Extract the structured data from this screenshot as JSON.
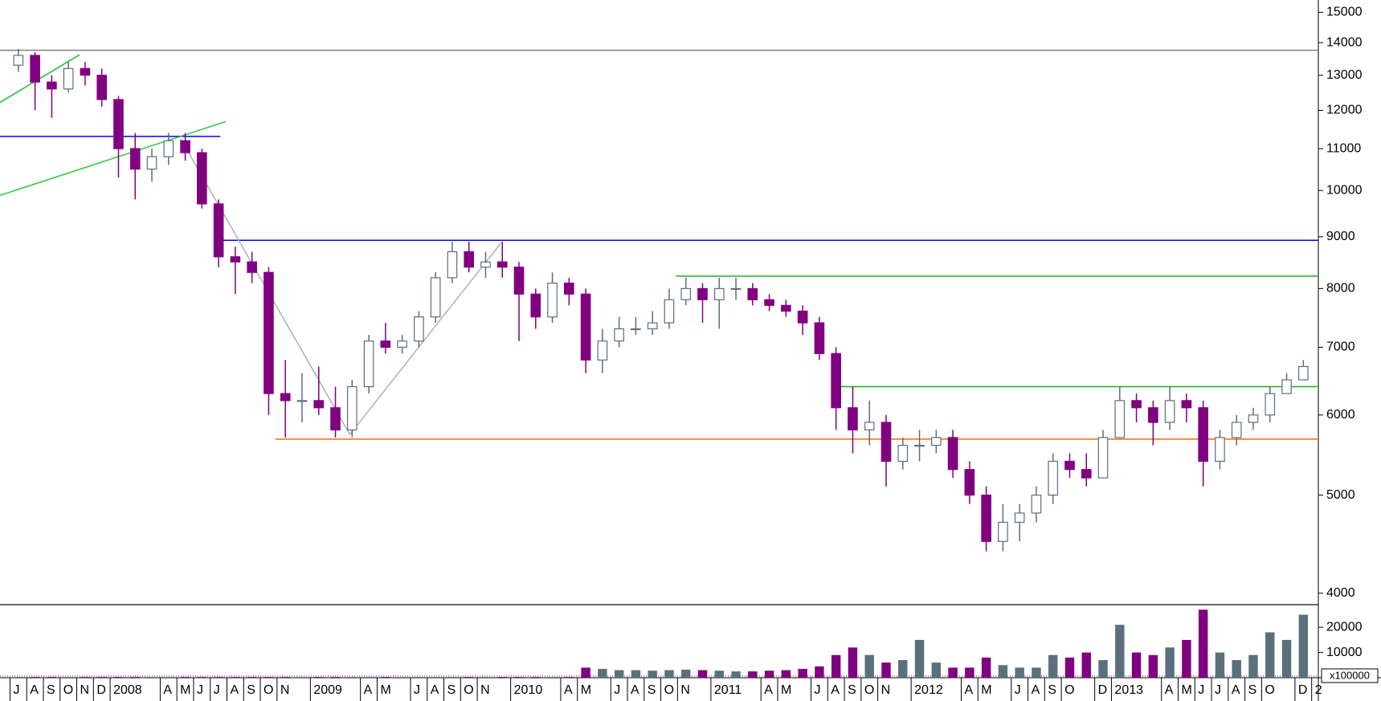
{
  "chart_data": {
    "type": "candlestick",
    "log_scale": true,
    "up_color": "#ffffff",
    "up_edge_color": "#5b6f7d",
    "down_color": "#800080",
    "ylim": [
      3897,
      15427
    ],
    "yticks": [
      4000,
      5000,
      6000,
      7000,
      8000,
      9000,
      10000,
      11000,
      12000,
      13000,
      14000,
      15000
    ],
    "xlim": [
      "2007-06-13",
      "2014-01-13"
    ],
    "xticks": [
      {
        "value": "2007-07",
        "label": "J"
      },
      {
        "value": "2007-08",
        "label": "A"
      },
      {
        "value": "2007-09",
        "label": "S"
      },
      {
        "value": "2007-10",
        "label": "O"
      },
      {
        "value": "2007-11",
        "label": "N"
      },
      {
        "value": "2007-12",
        "label": "D"
      },
      {
        "value": "2008-01",
        "label": "2008"
      },
      {
        "value": "2008-04",
        "label": "A"
      },
      {
        "value": "2008-05",
        "label": "M"
      },
      {
        "value": "2008-06",
        "label": "J"
      },
      {
        "value": "2008-07",
        "label": "J"
      },
      {
        "value": "2008-08",
        "label": "A"
      },
      {
        "value": "2008-09",
        "label": "S"
      },
      {
        "value": "2008-10",
        "label": "O"
      },
      {
        "value": "2008-11",
        "label": "N"
      },
      {
        "value": "2009-01",
        "label": "2009"
      },
      {
        "value": "2009-04",
        "label": "A"
      },
      {
        "value": "2009-05",
        "label": "M"
      },
      {
        "value": "2009-07",
        "label": "J"
      },
      {
        "value": "2009-08",
        "label": "A"
      },
      {
        "value": "2009-09",
        "label": "S"
      },
      {
        "value": "2009-10",
        "label": "O"
      },
      {
        "value": "2009-11",
        "label": "N"
      },
      {
        "value": "2010-01",
        "label": "2010"
      },
      {
        "value": "2010-04",
        "label": "A"
      },
      {
        "value": "2010-05",
        "label": "M"
      },
      {
        "value": "2010-07",
        "label": "J"
      },
      {
        "value": "2010-08",
        "label": "A"
      },
      {
        "value": "2010-09",
        "label": "S"
      },
      {
        "value": "2010-10",
        "label": "O"
      },
      {
        "value": "2010-11",
        "label": "N"
      },
      {
        "value": "2011-01",
        "label": "2011"
      },
      {
        "value": "2011-04",
        "label": "A"
      },
      {
        "value": "2011-05",
        "label": "M"
      },
      {
        "value": "2011-07",
        "label": "J"
      },
      {
        "value": "2011-08",
        "label": "A"
      },
      {
        "value": "2011-09",
        "label": "S"
      },
      {
        "value": "2011-10",
        "label": "O"
      },
      {
        "value": "2011-11",
        "label": "N"
      },
      {
        "value": "2012-01",
        "label": "2012"
      },
      {
        "value": "2012-04",
        "label": "A"
      },
      {
        "value": "2012-05",
        "label": "M"
      },
      {
        "value": "2012-07",
        "label": "J"
      },
      {
        "value": "2012-08",
        "label": "A"
      },
      {
        "value": "2012-09",
        "label": "S"
      },
      {
        "value": "2012-10",
        "label": "O"
      },
      {
        "value": "2012-12",
        "label": "D"
      },
      {
        "value": "2013-01",
        "label": "2013"
      },
      {
        "value": "2013-04",
        "label": "A"
      },
      {
        "value": "2013-05",
        "label": "M"
      },
      {
        "value": "2013-06",
        "label": "J"
      },
      {
        "value": "2013-07",
        "label": "J"
      },
      {
        "value": "2013-08",
        "label": "A"
      },
      {
        "value": "2013-09",
        "label": "S"
      },
      {
        "value": "2013-10",
        "label": "O"
      },
      {
        "value": "2013-12",
        "label": "D"
      },
      {
        "value": "2014-01",
        "label": "2"
      }
    ],
    "x": [
      "2007-07",
      "2007-08",
      "2007-09",
      "2007-10",
      "2007-11",
      "2007-12",
      "2008-01",
      "2008-02",
      "2008-03",
      "2008-04",
      "2008-05",
      "2008-06",
      "2008-07",
      "2008-08",
      "2008-09",
      "2008-10",
      "2008-11",
      "2008-12",
      "2009-01",
      "2009-02",
      "2009-03",
      "2009-04",
      "2009-05",
      "2009-06",
      "2009-07",
      "2009-08",
      "2009-09",
      "2009-10",
      "2009-11",
      "2009-12",
      "2010-01",
      "2010-02",
      "2010-03",
      "2010-04",
      "2010-05",
      "2010-06",
      "2010-07",
      "2010-08",
      "2010-09",
      "2010-10",
      "2010-11",
      "2010-12",
      "2011-01",
      "2011-02",
      "2011-03",
      "2011-04",
      "2011-05",
      "2011-06",
      "2011-07",
      "2011-08",
      "2011-09",
      "2011-10",
      "2011-11",
      "2011-12",
      "2012-01",
      "2012-02",
      "2012-03",
      "2012-04",
      "2012-05",
      "2012-06",
      "2012-07",
      "2012-08",
      "2012-09",
      "2012-10",
      "2012-11",
      "2012-12",
      "2013-01",
      "2013-02",
      "2013-03",
      "2013-04",
      "2013-05",
      "2013-06",
      "2013-07",
      "2013-08",
      "2013-09",
      "2013-10",
      "2013-11",
      "2013-12"
    ],
    "open": [
      13300,
      13600,
      12800,
      12600,
      13200,
      13000,
      12300,
      11000,
      10500,
      10800,
      11200,
      10900,
      9700,
      8600,
      8500,
      8300,
      6300,
      6200,
      6200,
      6100,
      5800,
      6400,
      7100,
      7000,
      7100,
      7500,
      8200,
      8700,
      8400,
      8500,
      8400,
      7900,
      7500,
      8100,
      7900,
      6800,
      7100,
      7300,
      7300,
      7400,
      7800,
      8000,
      7800,
      8000,
      8000,
      7800,
      7700,
      7600,
      7400,
      6900,
      6100,
      5800,
      5900,
      5400,
      5600,
      5600,
      5700,
      5300,
      5000,
      4500,
      4700,
      4800,
      5000,
      5400,
      5300,
      5200,
      5700,
      6200,
      6100,
      5900,
      6200,
      6100,
      5400,
      5700,
      5900,
      6000,
      6300,
      6500
    ],
    "high": [
      13800,
      13700,
      13000,
      13400,
      13400,
      13200,
      12400,
      11400,
      11000,
      11400,
      11400,
      11000,
      9800,
      8800,
      8700,
      8400,
      6800,
      6600,
      6700,
      6400,
      6500,
      7200,
      7400,
      7200,
      7600,
      8300,
      8900,
      8900,
      8700,
      8900,
      8500,
      8000,
      8300,
      8200,
      8000,
      7300,
      7500,
      7500,
      7600,
      8000,
      8200,
      8100,
      8200,
      8200,
      8100,
      7900,
      7800,
      7700,
      7500,
      7000,
      6400,
      6200,
      6000,
      5700,
      5800,
      5800,
      5800,
      5400,
      5100,
      4900,
      4900,
      5100,
      5500,
      5500,
      5500,
      5800,
      6400,
      6300,
      6200,
      6400,
      6300,
      6200,
      5800,
      6000,
      6100,
      6400,
      6600,
      6800
    ],
    "low": [
      13100,
      12000,
      11800,
      12500,
      12700,
      12100,
      10300,
      9800,
      10200,
      10600,
      10700,
      9600,
      8400,
      7900,
      8100,
      6000,
      5700,
      5900,
      6000,
      5700,
      5700,
      6300,
      6900,
      6900,
      7000,
      7400,
      8100,
      8300,
      8200,
      8200,
      7100,
      7300,
      7400,
      7700,
      6600,
      6600,
      7000,
      7200,
      7200,
      7300,
      7700,
      7400,
      7300,
      7800,
      7700,
      7600,
      7500,
      7200,
      6800,
      5800,
      5500,
      5600,
      5100,
      5300,
      5400,
      5500,
      5200,
      4900,
      4400,
      4400,
      4500,
      4700,
      4900,
      5200,
      5100,
      5200,
      5700,
      5900,
      5600,
      5800,
      5900,
      5100,
      5300,
      5600,
      5800,
      5900,
      6300,
      6500
    ],
    "close": [
      13600,
      12800,
      12600,
      13200,
      13000,
      12300,
      11000,
      10500,
      10800,
      11200,
      10900,
      9700,
      8600,
      8500,
      8300,
      6300,
      6200,
      6200,
      6100,
      5800,
      6400,
      7100,
      7000,
      7100,
      7500,
      8200,
      8700,
      8400,
      8500,
      8400,
      7900,
      7500,
      8100,
      7900,
      6800,
      7100,
      7300,
      7300,
      7400,
      7800,
      8000,
      7800,
      8000,
      8000,
      7800,
      7700,
      7600,
      7400,
      6900,
      6100,
      5800,
      5900,
      5400,
      5600,
      5600,
      5700,
      5300,
      5000,
      4500,
      4700,
      4800,
      5000,
      5400,
      5300,
      5200,
      5700,
      6200,
      6100,
      5900,
      6200,
      6100,
      5400,
      5700,
      5900,
      6000,
      6300,
      6500,
      6700
    ],
    "lines": [
      {
        "x": [
          "2007-06-13",
          "2014-01-13"
        ],
        "y": [
          13760,
          13760
        ],
        "color": "#808080"
      },
      {
        "x": [
          "2007-06-13",
          "2008-07-19"
        ],
        "y": [
          11310,
          11310
        ],
        "color": "#0000ff"
      },
      {
        "x": [
          "2008-07-19",
          "2014-01-13"
        ],
        "y": [
          8930,
          8930
        ],
        "color": "#0000ff"
      },
      {
        "x": [
          "2010-10-28",
          "2014-01-13"
        ],
        "y": [
          8230,
          8230
        ],
        "color": "#22aa22"
      },
      {
        "x": [
          "2011-08-10",
          "2014-01-13"
        ],
        "y": [
          6400,
          6400
        ],
        "color": "#22aa22"
      },
      {
        "x": [
          "2008-10-28",
          "2014-01-13"
        ],
        "y": [
          5680,
          5680
        ],
        "color": "#ff6600"
      },
      {
        "x": [
          "2007-06-13",
          "2007-11-06"
        ],
        "y": [
          12220,
          13620
        ],
        "color": "#22bb33"
      },
      {
        "x": [
          "2007-06-13",
          "2008-07-29"
        ],
        "y": [
          9890,
          11700
        ],
        "color": "#22cc33"
      },
      {
        "x": [
          "2008-05-08",
          "2009-03-12"
        ],
        "y": [
          11240,
          5740
        ],
        "color": "#b0b0b0"
      },
      {
        "x": [
          "2009-03-12",
          "2009-12-14"
        ],
        "y": [
          5740,
          8880
        ],
        "color": "#b0b0b0"
      }
    ],
    "volume": {
      "unit_label": "x100000",
      "ylim": [
        0,
        29000
      ],
      "yticks": [
        10000,
        20000
      ],
      "values": [
        300,
        300,
        300,
        300,
        300,
        300,
        300,
        300,
        300,
        300,
        300,
        300,
        300,
        300,
        300,
        300,
        300,
        300,
        300,
        300,
        300,
        300,
        300,
        300,
        300,
        300,
        300,
        300,
        300,
        300,
        300,
        300,
        300,
        300,
        4000,
        3500,
        3000,
        3000,
        2800,
        3000,
        3200,
        3000,
        2800,
        2500,
        2500,
        2800,
        3000,
        3500,
        4500,
        9000,
        12000,
        9000,
        6000,
        7000,
        15000,
        6000,
        4000,
        4000,
        8000,
        5000,
        4000,
        4000,
        9000,
        8000,
        10000,
        7000,
        21000,
        10000,
        9000,
        12000,
        15000,
        27000,
        10000,
        7000,
        9000,
        18000,
        15000,
        25000
      ]
    }
  }
}
